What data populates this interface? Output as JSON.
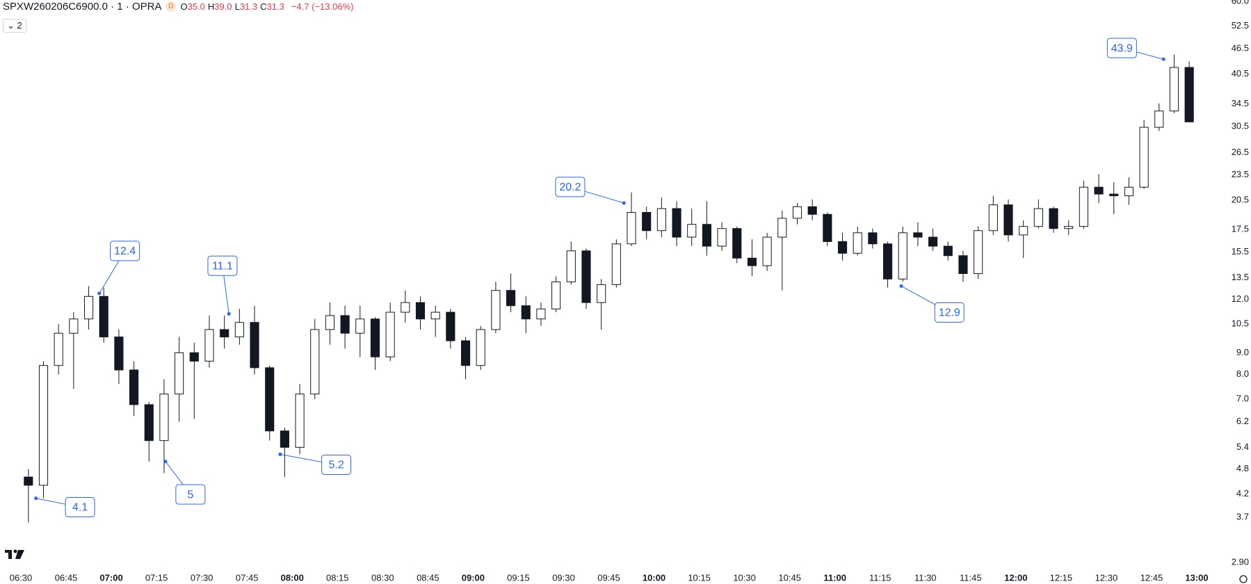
{
  "header": {
    "symbol": "SPXW260206C6900.0 · 1 · OPRA",
    "badge": "D",
    "ohlc": [
      {
        "key": "O",
        "value": "35.0"
      },
      {
        "key": "H",
        "value": "39.0"
      },
      {
        "key": "L",
        "value": "31.3"
      },
      {
        "key": "C",
        "value": "31.3"
      }
    ],
    "change": "−4.7 (−13.06%)",
    "indicator_count": "2"
  },
  "chart_data": {
    "type": "candlestick",
    "log_scale": true,
    "up_color": "#ffffff",
    "down_color": "#131722",
    "wick_color": "#131722",
    "annotation_color": "#2962ff",
    "x": [
      "06:30",
      "06:35",
      "06:40",
      "06:45",
      "06:50",
      "06:55",
      "07:00",
      "07:05",
      "07:10",
      "07:15",
      "07:20",
      "07:25",
      "07:30",
      "07:35",
      "07:40",
      "07:45",
      "07:50",
      "07:55",
      "08:00",
      "08:05",
      "08:10",
      "08:15",
      "08:20",
      "08:25",
      "08:30",
      "08:35",
      "08:40",
      "08:45",
      "08:50",
      "08:55",
      "09:00",
      "09:05",
      "09:10",
      "09:15",
      "09:20",
      "09:25",
      "09:30",
      "09:35",
      "09:40",
      "09:45",
      "09:50",
      "09:55",
      "10:00",
      "10:05",
      "10:10",
      "10:15",
      "10:20",
      "10:25",
      "10:30",
      "10:35",
      "10:40",
      "10:45",
      "10:50",
      "10:55",
      "11:00",
      "11:05",
      "11:10",
      "11:15",
      "11:20",
      "11:25",
      "11:30",
      "11:35",
      "11:40",
      "11:45",
      "11:50",
      "11:55",
      "12:00",
      "12:05",
      "12:10",
      "12:15",
      "12:20",
      "12:25",
      "12:30",
      "12:35",
      "12:40",
      "12:45",
      "12:50",
      "12:55"
    ],
    "open": [
      4.6,
      4.4,
      8.4,
      10.0,
      10.8,
      12.2,
      9.8,
      8.2,
      6.8,
      5.6,
      7.2,
      9.0,
      8.6,
      10.2,
      9.8,
      10.6,
      8.3,
      5.9,
      5.4,
      7.2,
      10.2,
      11.0,
      10.0,
      10.8,
      8.8,
      11.2,
      11.8,
      10.8,
      11.2,
      9.6,
      8.4,
      10.2,
      12.6,
      11.6,
      10.8,
      11.4,
      13.2,
      15.6,
      11.8,
      13.0,
      16.2,
      19.2,
      17.4,
      19.6,
      16.8,
      18.0,
      16.0,
      17.6,
      15.0,
      14.4,
      16.8,
      18.6,
      19.8,
      19.0,
      16.4,
      15.4,
      17.2,
      16.2,
      13.4,
      17.2,
      16.8,
      16.0,
      15.2,
      13.8,
      17.4,
      20.0,
      17.0,
      17.8,
      19.6,
      17.6,
      17.8,
      22.0,
      21.2,
      21.0,
      22.0,
      30.4,
      33.2,
      42.0
    ],
    "high": [
      4.8,
      8.6,
      10.5,
      11.2,
      12.9,
      12.8,
      10.2,
      8.6,
      6.9,
      7.8,
      9.8,
      9.5,
      11.0,
      11.0,
      11.4,
      11.6,
      8.4,
      6.0,
      7.6,
      10.8,
      11.8,
      11.6,
      11.6,
      10.9,
      11.8,
      12.6,
      12.2,
      11.6,
      11.4,
      9.8,
      10.4,
      13.2,
      13.8,
      12.2,
      11.8,
      13.6,
      16.4,
      15.8,
      13.4,
      16.6,
      21.4,
      19.8,
      20.8,
      20.4,
      19.6,
      20.4,
      18.2,
      17.8,
      16.6,
      17.2,
      19.4,
      20.2,
      20.6,
      19.2,
      17.2,
      17.8,
      17.6,
      16.4,
      17.8,
      18.2,
      17.6,
      16.4,
      15.6,
      17.8,
      21.0,
      20.6,
      18.4,
      20.6,
      19.8,
      18.4,
      22.8,
      23.6,
      22.6,
      23.2,
      31.6,
      34.6,
      45.0,
      43.4
    ],
    "low": [
      3.6,
      4.1,
      8.0,
      7.4,
      10.2,
      9.5,
      7.6,
      6.4,
      5.0,
      4.7,
      6.2,
      6.3,
      8.3,
      9.2,
      9.4,
      8.0,
      5.6,
      4.6,
      5.2,
      7.0,
      9.4,
      9.2,
      8.8,
      8.2,
      8.6,
      10.6,
      10.2,
      9.8,
      9.2,
      7.8,
      8.2,
      10.0,
      11.2,
      10.0,
      10.4,
      11.2,
      13.0,
      11.4,
      10.2,
      12.8,
      16.0,
      16.6,
      16.8,
      16.0,
      16.0,
      15.2,
      15.6,
      14.6,
      13.6,
      14.0,
      12.6,
      18.0,
      18.4,
      16.0,
      14.8,
      15.2,
      15.8,
      12.8,
      13.2,
      16.0,
      15.6,
      14.8,
      13.2,
      13.4,
      17.0,
      16.4,
      15.0,
      17.6,
      17.2,
      17.0,
      17.6,
      20.2,
      19.0,
      20.0,
      21.8,
      29.8,
      32.8,
      31.3
    ],
    "close": [
      4.4,
      8.4,
      10.0,
      10.8,
      12.2,
      9.8,
      8.2,
      6.8,
      5.6,
      7.2,
      9.0,
      8.6,
      10.2,
      9.8,
      10.6,
      8.3,
      5.9,
      5.4,
      7.2,
      10.2,
      11.0,
      10.0,
      10.8,
      8.8,
      11.2,
      11.8,
      10.8,
      11.2,
      9.6,
      8.4,
      10.2,
      12.6,
      11.6,
      10.8,
      11.4,
      13.2,
      15.6,
      11.8,
      13.0,
      16.2,
      19.2,
      17.4,
      19.6,
      16.8,
      18.0,
      16.0,
      17.6,
      15.0,
      14.4,
      16.8,
      18.6,
      19.8,
      19.0,
      16.4,
      15.4,
      17.2,
      16.2,
      13.4,
      17.2,
      16.8,
      16.0,
      15.2,
      13.8,
      17.4,
      20.0,
      17.0,
      17.8,
      19.6,
      17.6,
      17.8,
      22.0,
      21.2,
      21.0,
      22.0,
      30.4,
      33.2,
      42.0,
      31.3
    ],
    "annotations": [
      {
        "x": "06:35",
        "value": 4.1
      },
      {
        "x": "06:56",
        "value": 12.4
      },
      {
        "x": "07:18",
        "value": 5.0
      },
      {
        "x": "07:39",
        "value": 11.1
      },
      {
        "x": "07:56",
        "value": 5.2
      },
      {
        "x": "09:50",
        "value": 20.2
      },
      {
        "x": "11:22",
        "value": 12.9
      },
      {
        "x": "12:49",
        "value": 43.9
      }
    ],
    "xlim": [
      "06:30",
      "13:00"
    ],
    "xticks": [
      "06:30",
      "06:45",
      "07:00",
      "07:15",
      "07:30",
      "07:45",
      "08:00",
      "08:15",
      "08:30",
      "08:45",
      "09:00",
      "09:15",
      "09:30",
      "09:45",
      "10:00",
      "10:15",
      "10:30",
      "10:45",
      "11:00",
      "11:15",
      "11:30",
      "11:45",
      "12:00",
      "12:15",
      "12:30",
      "12:45",
      "13:00"
    ],
    "ylim": [
      2.9,
      60
    ],
    "yticks": [
      {
        "value": 2.9,
        "label": "2.90"
      },
      3.7,
      4.2,
      4.8,
      5.4,
      6.2,
      {
        "value": 7,
        "label": "7.0"
      },
      {
        "value": 8,
        "label": "8.0"
      },
      {
        "value": 9,
        "label": "9.0"
      },
      10.5,
      {
        "value": 12,
        "label": "12.0"
      },
      13.5,
      15.5,
      17.5,
      20.5,
      23.5,
      26.5,
      30.5,
      34.5,
      40.5,
      46.5,
      52.5,
      {
        "value": 60,
        "label": "60.0"
      }
    ]
  }
}
